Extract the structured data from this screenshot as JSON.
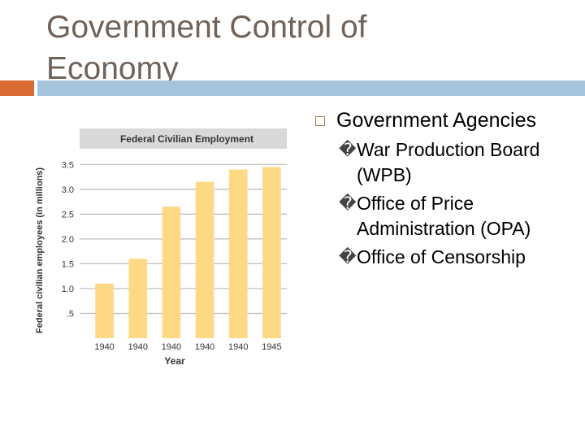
{
  "slide": {
    "title": "Government Control of Economy"
  },
  "bullets": {
    "main": "Government Agencies",
    "subitems": [
      "War Production Board (WPB)",
      "Office of Price Administration (OPA)",
      "Office of Censorship"
    ],
    "subglyph": "�"
  },
  "chart_data": {
    "type": "bar",
    "title": "Federal Civilian Employment",
    "xlabel": "Year",
    "ylabel": "Federal civilian employees (in millions)",
    "categories": [
      "1940",
      "1940",
      "1940",
      "1940",
      "1940",
      "1945"
    ],
    "values": [
      1.1,
      1.6,
      2.65,
      3.15,
      3.4,
      3.45
    ],
    "ytick_labels": [
      "3.5",
      "3.0",
      "2.5",
      "2.0",
      "1.5",
      "1.0",
      ".5"
    ],
    "ytick_values": [
      3.5,
      3.0,
      2.5,
      2.0,
      1.5,
      1.0,
      0.5
    ],
    "ylim": [
      0,
      3.8
    ],
    "grid": true,
    "colors": {
      "bar": "#fdd985",
      "grid": "#b9b9b9",
      "header": "#d9d9d9"
    }
  }
}
